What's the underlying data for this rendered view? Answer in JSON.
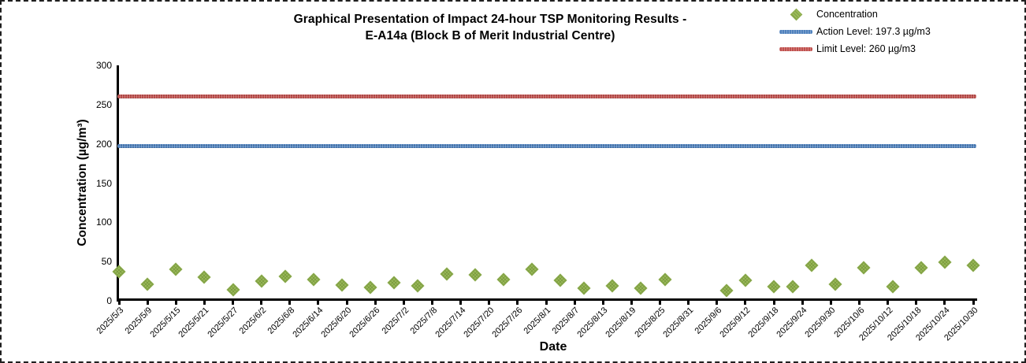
{
  "chart_data": {
    "type": "scatter",
    "title_line1": "Graphical Presentation of Impact 24-hour TSP Monitoring Results -",
    "title_line2": "E-A14a (Block B of Merit Industrial Centre)",
    "xlabel": "Date",
    "ylabel": "Concentration (µg/m³)",
    "ylim": [
      0,
      300
    ],
    "y_ticks": [
      0,
      50,
      100,
      150,
      200,
      250,
      300
    ],
    "grid": false,
    "x_axis_days": 180,
    "x_tick_interval_days": 6,
    "x_tick_labels": [
      "2025/5/3",
      "2025/5/9",
      "2025/5/15",
      "2025/5/21",
      "2025/5/27",
      "2025/6/2",
      "2025/6/8",
      "2025/6/14",
      "2025/6/20",
      "2025/6/26",
      "2025/7/2",
      "2025/7/8",
      "2025/7/14",
      "2025/7/20",
      "2025/7/26",
      "2025/8/1",
      "2025/8/7",
      "2025/8/13",
      "2025/8/19",
      "2025/8/25",
      "2025/8/31",
      "2025/9/6",
      "2025/9/12",
      "2025/9/18",
      "2025/9/24",
      "2025/9/30",
      "2025/10/6",
      "2025/10/12",
      "2025/10/18",
      "2025/10/24",
      "2025/10/30"
    ],
    "legend_position": "top-right",
    "legend": [
      {
        "label": "Concentration",
        "marker": "diamond",
        "color": "#9BBB59"
      },
      {
        "label": "Action Level: 197.3 µg/m3",
        "marker": "line",
        "color": "#4F81BD"
      },
      {
        "label": "Limit Level: 260 µg/m3",
        "marker": "line",
        "color": "#C0504D"
      }
    ],
    "series": [
      {
        "name": "Concentration",
        "type": "scatter",
        "marker": "diamond",
        "color": "#9BBB59",
        "points": [
          {
            "day": 0,
            "value": 37
          },
          {
            "day": 6,
            "value": 21
          },
          {
            "day": 12,
            "value": 40
          },
          {
            "day": 18,
            "value": 30
          },
          {
            "day": 24,
            "value": 14
          },
          {
            "day": 30,
            "value": 25
          },
          {
            "day": 35,
            "value": 31
          },
          {
            "day": 41,
            "value": 27
          },
          {
            "day": 47,
            "value": 20
          },
          {
            "day": 53,
            "value": 17
          },
          {
            "day": 58,
            "value": 23
          },
          {
            "day": 63,
            "value": 19
          },
          {
            "day": 69,
            "value": 34
          },
          {
            "day": 75,
            "value": 33
          },
          {
            "day": 81,
            "value": 27
          },
          {
            "day": 87,
            "value": 40
          },
          {
            "day": 93,
            "value": 26
          },
          {
            "day": 98,
            "value": 16
          },
          {
            "day": 104,
            "value": 19
          },
          {
            "day": 110,
            "value": 16
          },
          {
            "day": 115,
            "value": 27
          },
          {
            "day": 128,
            "value": 13
          },
          {
            "day": 132,
            "value": 26
          },
          {
            "day": 138,
            "value": 18
          },
          {
            "day": 142,
            "value": 18
          },
          {
            "day": 146,
            "value": 45
          },
          {
            "day": 151,
            "value": 21
          },
          {
            "day": 157,
            "value": 42
          },
          {
            "day": 163,
            "value": 18
          },
          {
            "day": 169,
            "value": 42
          },
          {
            "day": 174,
            "value": 49
          },
          {
            "day": 180,
            "value": 45
          }
        ]
      },
      {
        "name": "Action Level",
        "type": "hline",
        "value": 197.3,
        "color": "#4F81BD"
      },
      {
        "name": "Limit Level",
        "type": "hline",
        "value": 260,
        "color": "#C0504D"
      }
    ]
  }
}
